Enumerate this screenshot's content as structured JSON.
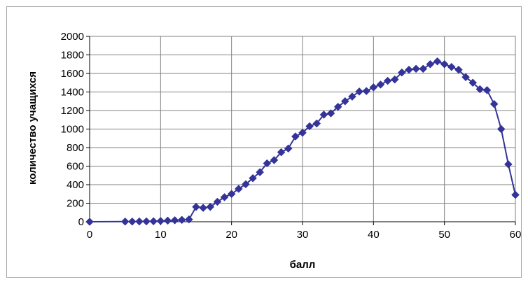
{
  "chart_data": {
    "type": "line",
    "title": "",
    "xlabel": "балл",
    "ylabel": "количество  учащихся",
    "xlim": [
      0,
      60
    ],
    "ylim": [
      0,
      2000
    ],
    "xticks": [
      0,
      10,
      20,
      30,
      40,
      50,
      60
    ],
    "yticks": [
      0,
      200,
      400,
      600,
      800,
      1000,
      1200,
      1400,
      1600,
      1800,
      2000
    ],
    "grid": true,
    "legend": "none",
    "line_color": "#333399",
    "marker": "diamond",
    "series": [
      {
        "x": [
          0,
          5,
          6,
          7,
          8,
          9,
          10,
          11,
          12,
          13,
          14,
          15,
          16,
          17,
          18,
          19,
          20,
          21,
          22,
          23,
          24,
          25,
          26,
          27,
          28,
          29,
          30,
          31,
          32,
          33,
          34,
          35,
          36,
          37,
          38,
          39,
          40,
          41,
          42,
          43,
          44,
          45,
          46,
          47,
          48,
          49,
          50,
          51,
          52,
          53,
          54,
          55,
          56,
          57,
          58,
          59,
          60
        ],
        "values": [
          0,
          2,
          2,
          3,
          4,
          5,
          8,
          12,
          16,
          20,
          25,
          160,
          150,
          160,
          215,
          265,
          300,
          355,
          405,
          470,
          535,
          630,
          665,
          750,
          790,
          920,
          960,
          1030,
          1060,
          1155,
          1170,
          1240,
          1300,
          1350,
          1405,
          1410,
          1450,
          1480,
          1520,
          1535,
          1610,
          1640,
          1650,
          1650,
          1700,
          1730,
          1700,
          1670,
          1640,
          1560,
          1500,
          1430,
          1420,
          1270,
          1000,
          620,
          290
        ]
      }
    ]
  }
}
